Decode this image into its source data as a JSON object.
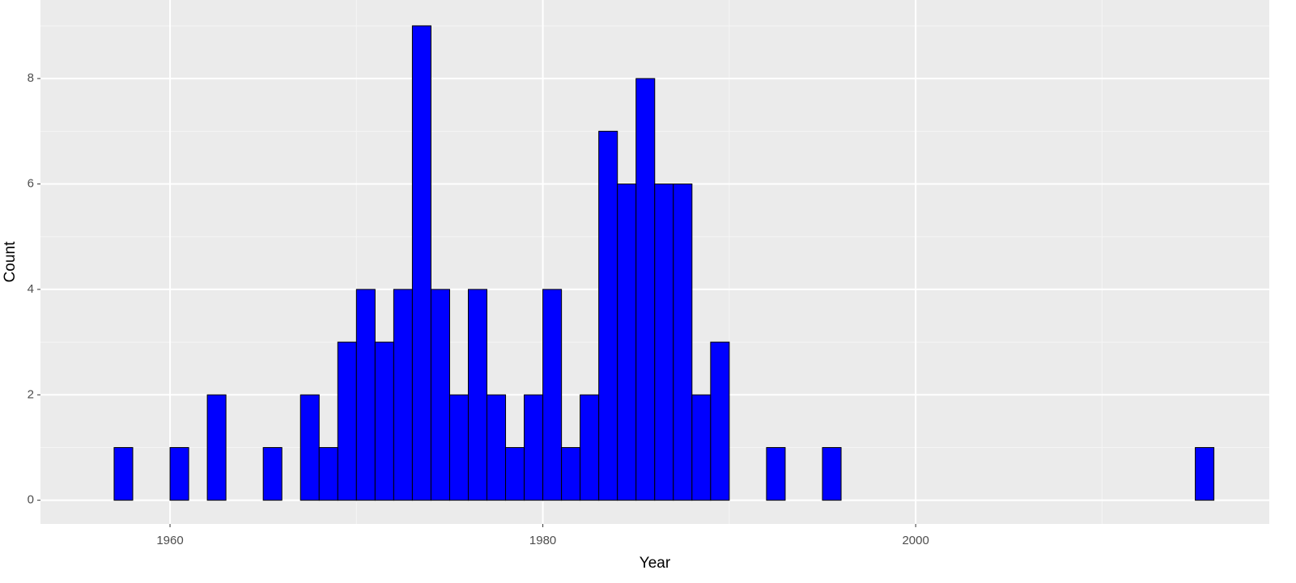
{
  "chart_data": {
    "type": "histogram",
    "x_label": "Year",
    "y_label": "Count",
    "bins": [
      1956,
      1957,
      1958,
      1959,
      1960,
      1961,
      1962,
      1963,
      1964,
      1965,
      1966,
      1967,
      1968,
      1969,
      1970,
      1971,
      1972,
      1973,
      1974,
      1975,
      1976,
      1977,
      1978,
      1979,
      1980,
      1981,
      1982,
      1983,
      1984,
      1985,
      1986,
      1987,
      1988,
      1989,
      1990,
      1991,
      1992,
      1993,
      1994,
      1995,
      1996,
      1997,
      1998,
      1999,
      2000,
      2001,
      2002,
      2003,
      2004,
      2005,
      2006,
      2007,
      2008,
      2009,
      2010,
      2011,
      2012,
      2013,
      2014,
      2015,
      2016
    ],
    "values": [
      0,
      1,
      0,
      0,
      1,
      0,
      2,
      0,
      0,
      1,
      0,
      2,
      1,
      3,
      4,
      3,
      4,
      9,
      4,
      2,
      4,
      2,
      1,
      2,
      4,
      1,
      2,
      7,
      6,
      8,
      6,
      6,
      2,
      3,
      0,
      0,
      1,
      0,
      0,
      1,
      0,
      0,
      0,
      0,
      0,
      0,
      0,
      0,
      0,
      0,
      0,
      0,
      0,
      0,
      0,
      0,
      0,
      0,
      0,
      1
    ],
    "color": "#0000ff",
    "xlim": [
      1953.05,
      2018.97
    ],
    "xticks": [
      1960,
      1980,
      2000
    ],
    "ylim": [
      -0.45,
      9.49
    ],
    "yticks": [
      0,
      2,
      4,
      6,
      8
    ],
    "grid": true
  }
}
